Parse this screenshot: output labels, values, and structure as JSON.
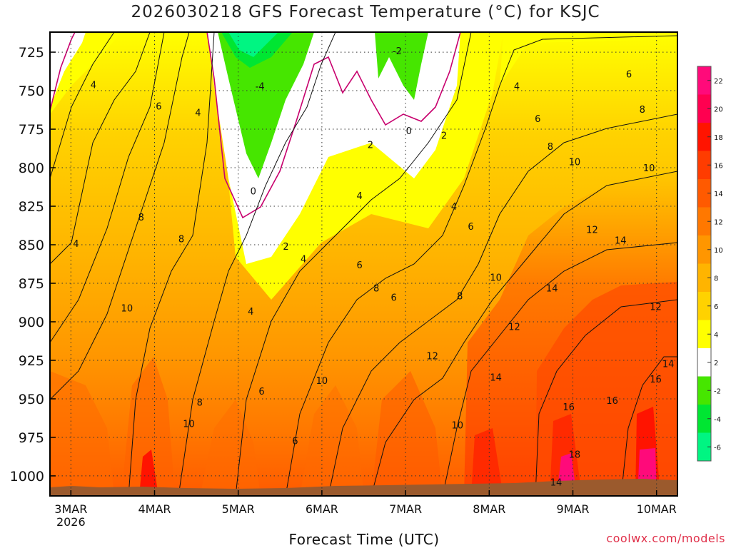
{
  "chart_data": {
    "type": "heatmap",
    "title": "2026030218 GFS Forecast Temperature (°C) for KSJC",
    "xlabel": "Forecast Time (UTC)",
    "ylabel": "",
    "credit": "coolwx.com/models",
    "y_levels": [
      725,
      750,
      775,
      800,
      825,
      850,
      875,
      900,
      925,
      950,
      975,
      1000
    ],
    "y_range": [
      712,
      1013
    ],
    "x_categories": [
      "3MAR",
      "4MAR",
      "5MAR",
      "6MAR",
      "7MAR",
      "8MAR",
      "9MAR",
      "10MAR"
    ],
    "x_sublabel": "2026",
    "x_range_days": [
      -0.25,
      7.25
    ],
    "colorbar_ticks": [
      22,
      20,
      18,
      16,
      14,
      12,
      10,
      8,
      6,
      4,
      2,
      -2,
      -4,
      -6
    ],
    "colorbar_colors": [
      "#ff0a7a",
      "#ff0050",
      "#ff1400",
      "#ff3c00",
      "#ff5a00",
      "#ff7800",
      "#ff9600",
      "#ffb400",
      "#ffd200",
      "#ffff00",
      "#ffffff",
      "#46e600",
      "#00e632",
      "#00f582"
    ],
    "contour_labels": [
      {
        "text": "4",
        "day": 0.27,
        "p": 746
      },
      {
        "text": "6",
        "day": 1.05,
        "p": 760
      },
      {
        "text": "4",
        "day": 1.52,
        "p": 764
      },
      {
        "text": "4",
        "day": 0.06,
        "p": 849
      },
      {
        "text": "8",
        "day": 0.84,
        "p": 832
      },
      {
        "text": "8",
        "day": 1.32,
        "p": 846
      },
      {
        "text": "10",
        "day": 0.67,
        "p": 891
      },
      {
        "text": "10",
        "day": 1.41,
        "p": 966
      },
      {
        "text": "8",
        "day": 1.54,
        "p": 952
      },
      {
        "text": "-4",
        "day": 2.26,
        "p": 747
      },
      {
        "text": "0",
        "day": 2.18,
        "p": 815
      },
      {
        "text": "2",
        "day": 2.57,
        "p": 851
      },
      {
        "text": "4",
        "day": 2.78,
        "p": 859
      },
      {
        "text": "4",
        "day": 2.15,
        "p": 893
      },
      {
        "text": "6",
        "day": 2.28,
        "p": 945
      },
      {
        "text": "6",
        "day": 2.68,
        "p": 977
      },
      {
        "text": "10",
        "day": 3.0,
        "p": 938
      },
      {
        "text": "6",
        "day": 3.45,
        "p": 863
      },
      {
        "text": "8",
        "day": 3.65,
        "p": 878
      },
      {
        "text": "6",
        "day": 3.86,
        "p": 884
      },
      {
        "text": "4",
        "day": 3.45,
        "p": 818
      },
      {
        "text": "2",
        "day": 3.58,
        "p": 785
      },
      {
        "text": "-2",
        "day": 3.9,
        "p": 724
      },
      {
        "text": "0",
        "day": 4.04,
        "p": 776
      },
      {
        "text": "2",
        "day": 4.46,
        "p": 779
      },
      {
        "text": "4",
        "day": 4.58,
        "p": 825
      },
      {
        "text": "6",
        "day": 4.78,
        "p": 838
      },
      {
        "text": "12",
        "day": 4.32,
        "p": 922
      },
      {
        "text": "10",
        "day": 4.62,
        "p": 967
      },
      {
        "text": "8",
        "day": 4.65,
        "p": 883
      },
      {
        "text": "10",
        "day": 5.08,
        "p": 871
      },
      {
        "text": "12",
        "day": 5.3,
        "p": 903
      },
      {
        "text": "14",
        "day": 5.08,
        "p": 936
      },
      {
        "text": "4",
        "day": 5.33,
        "p": 747
      },
      {
        "text": "6",
        "day": 5.58,
        "p": 768
      },
      {
        "text": "8",
        "day": 5.73,
        "p": 786
      },
      {
        "text": "10",
        "day": 6.02,
        "p": 796
      },
      {
        "text": "12",
        "day": 6.23,
        "p": 840
      },
      {
        "text": "14",
        "day": 6.57,
        "p": 847
      },
      {
        "text": "14",
        "day": 5.75,
        "p": 878
      },
      {
        "text": "16",
        "day": 5.95,
        "p": 955
      },
      {
        "text": "18",
        "day": 6.02,
        "p": 986
      },
      {
        "text": "14",
        "day": 5.8,
        "p": 1004
      },
      {
        "text": "16",
        "day": 6.47,
        "p": 951
      },
      {
        "text": "6",
        "day": 6.67,
        "p": 739
      },
      {
        "text": "8",
        "day": 6.83,
        "p": 762
      },
      {
        "text": "10",
        "day": 6.91,
        "p": 800
      },
      {
        "text": "12",
        "day": 6.99,
        "p": 890
      },
      {
        "text": "16",
        "day": 6.99,
        "p": 937
      },
      {
        "text": "14",
        "day": 7.14,
        "p": 927
      }
    ]
  }
}
